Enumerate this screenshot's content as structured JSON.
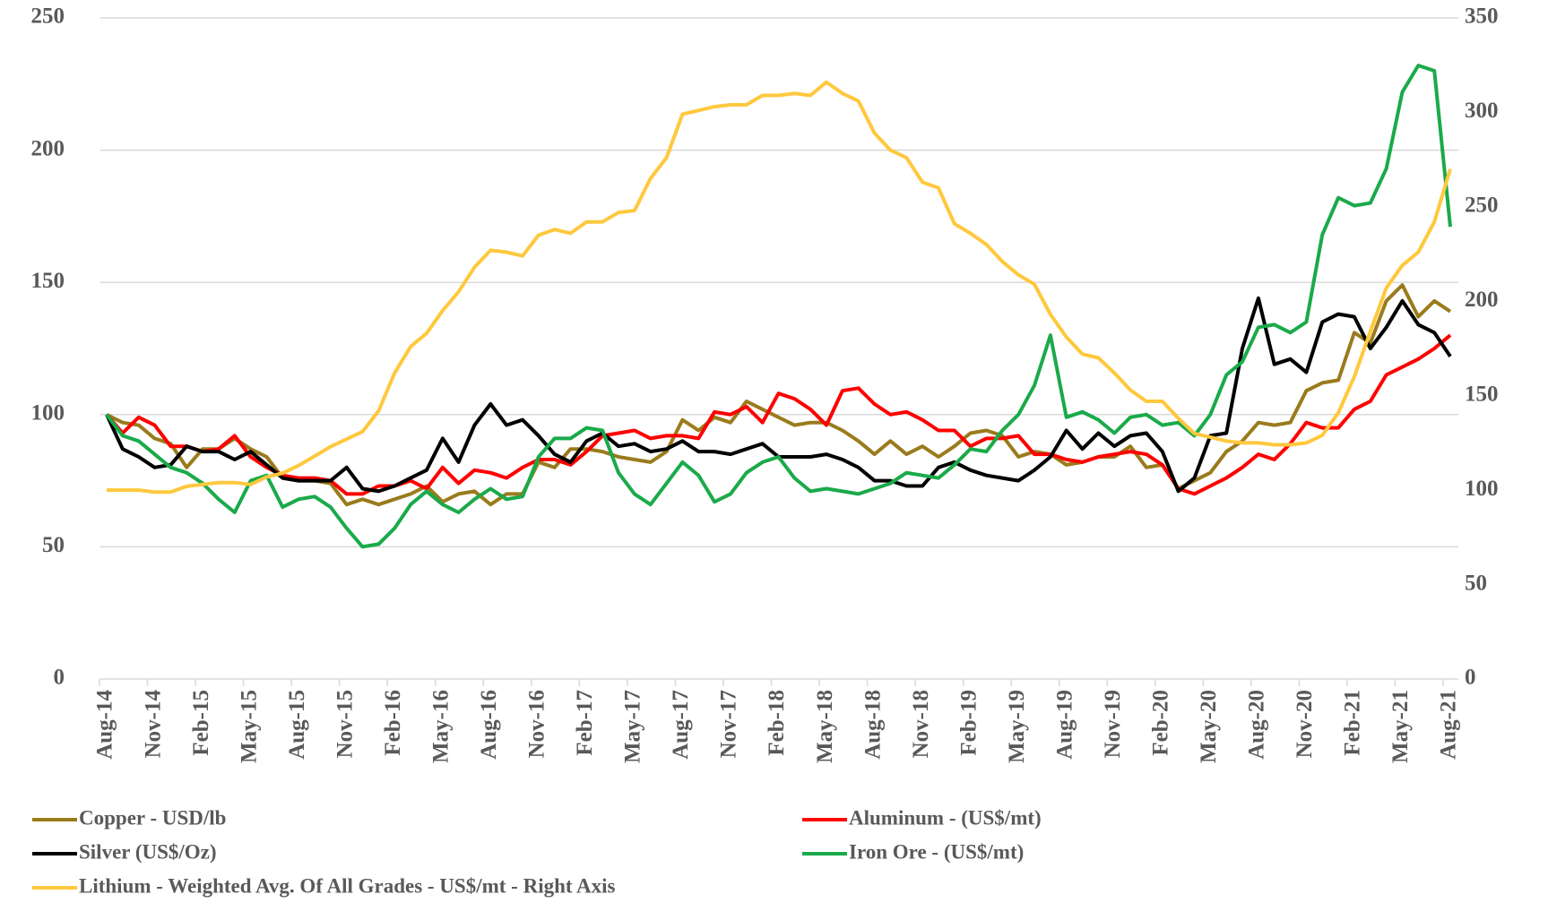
{
  "chart_data": {
    "type": "line",
    "categories": [
      "Aug-14",
      null,
      null,
      "Nov-14",
      null,
      null,
      "Feb-15",
      null,
      null,
      "May-15",
      null,
      null,
      "Aug-15",
      null,
      null,
      "Nov-15",
      null,
      null,
      "Feb-16",
      null,
      null,
      "May-16",
      null,
      null,
      "Aug-16",
      null,
      null,
      "Nov-16",
      null,
      null,
      "Feb-17",
      null,
      null,
      "May-17",
      null,
      null,
      "Aug-17",
      null,
      null,
      "Nov-17",
      null,
      null,
      "Feb-18",
      null,
      null,
      "May-18",
      null,
      null,
      "Aug-18",
      null,
      null,
      "Nov-18",
      null,
      null,
      "Feb-19",
      null,
      null,
      "May-19",
      null,
      null,
      "Aug-19",
      null,
      null,
      "Nov-19",
      null,
      null,
      "Feb-20",
      null,
      null,
      "May-20",
      null,
      null,
      "Aug-20",
      null,
      null,
      "Nov-20",
      null,
      null,
      "Feb-21",
      null,
      null,
      "May-21",
      null,
      null,
      "Aug-21"
    ],
    "series": [
      {
        "name": "Copper - USD/lb",
        "color": "#9a7b1c",
        "values": [
          100,
          97,
          96,
          91,
          89,
          80,
          87,
          87,
          91,
          87,
          84,
          76,
          75,
          75,
          74,
          66,
          68,
          66,
          68,
          70,
          73,
          67,
          70,
          71,
          66,
          70,
          70,
          82,
          80,
          87,
          87,
          86,
          84,
          83,
          82,
          86,
          98,
          94,
          99,
          97,
          105,
          102,
          99,
          96,
          97,
          97,
          94,
          90,
          85,
          90,
          85,
          88,
          84,
          88,
          93,
          94,
          92,
          84,
          86,
          85,
          81,
          82,
          84,
          84,
          88,
          80,
          81,
          72,
          75,
          78,
          86,
          90,
          97,
          96,
          97,
          109,
          112,
          113,
          131,
          127,
          143,
          149,
          137,
          143,
          139
        ]
      },
      {
        "name": "Aluminum - (US$/mt)",
        "color": "#ff0000",
        "values": [
          100,
          93,
          99,
          96,
          88,
          88,
          86,
          87,
          92,
          84,
          80,
          77,
          76,
          76,
          75,
          70,
          70,
          73,
          73,
          75,
          72,
          80,
          74,
          79,
          78,
          76,
          80,
          83,
          83,
          81,
          86,
          92,
          93,
          94,
          91,
          92,
          92,
          91,
          101,
          100,
          103,
          97,
          108,
          106,
          102,
          96,
          109,
          110,
          104,
          100,
          101,
          98,
          94,
          94,
          88,
          91,
          91,
          92,
          85,
          85,
          83,
          82,
          84,
          85,
          86,
          85,
          81,
          72,
          70,
          73,
          76,
          80,
          85,
          83,
          89,
          97,
          95,
          95,
          102,
          105,
          115,
          118,
          121,
          125,
          130
        ]
      },
      {
        "name": "Silver (US$/Oz)",
        "color": "#000000",
        "values": [
          100,
          87,
          84,
          80,
          81,
          88,
          86,
          86,
          83,
          86,
          81,
          76,
          75,
          75,
          75,
          80,
          72,
          71,
          73,
          76,
          79,
          91,
          82,
          96,
          104,
          96,
          98,
          92,
          85,
          82,
          90,
          93,
          88,
          89,
          86,
          87,
          90,
          86,
          86,
          85,
          87,
          89,
          84,
          84,
          84,
          85,
          83,
          80,
          75,
          75,
          73,
          73,
          80,
          82,
          79,
          77,
          76,
          75,
          79,
          84,
          94,
          87,
          93,
          88,
          92,
          93,
          86,
          71,
          76,
          92,
          93,
          125,
          144,
          119,
          121,
          116,
          135,
          138,
          137,
          125,
          133,
          143,
          134,
          131,
          122
        ]
      },
      {
        "name": "Iron Ore - (US$/mt)",
        "color": "#1aaa4a",
        "values": [
          100,
          92,
          90,
          85,
          80,
          78,
          74,
          68,
          63,
          75,
          77,
          65,
          68,
          69,
          65,
          57,
          50,
          51,
          57,
          66,
          71,
          66,
          63,
          68,
          72,
          68,
          69,
          84,
          91,
          91,
          95,
          94,
          78,
          70,
          66,
          74,
          82,
          77,
          67,
          70,
          78,
          82,
          84,
          76,
          71,
          72,
          71,
          70,
          72,
          74,
          78,
          77,
          76,
          81,
          87,
          86,
          94,
          100,
          111,
          130,
          99,
          101,
          98,
          93,
          99,
          100,
          96,
          97,
          92,
          100,
          115,
          120,
          133,
          134,
          131,
          135,
          168,
          182,
          179,
          180,
          193,
          222,
          232,
          230,
          171
        ]
      },
      {
        "name": "Lithium - Weighted Avg. Of All Grades - US$/mt - Right Axis",
        "color": "#ffc83d",
        "axis": "y2",
        "values": [
          100,
          100,
          100,
          99,
          99,
          102,
          103,
          104,
          104,
          103,
          107,
          109,
          113,
          118,
          123,
          127,
          131,
          142,
          162,
          176,
          183,
          195,
          205,
          218,
          227,
          226,
          224,
          235,
          238,
          236,
          242,
          242,
          247,
          248,
          265,
          276,
          299,
          301,
          303,
          304,
          304,
          309,
          309,
          310,
          309,
          316,
          310,
          306,
          289,
          280,
          276,
          263,
          260,
          241,
          236,
          230,
          221,
          214,
          209,
          193,
          181,
          172,
          170,
          162,
          153,
          147,
          147,
          138,
          130,
          128,
          126,
          125,
          125,
          124,
          124,
          125,
          129,
          141,
          160,
          184,
          207,
          219,
          226,
          242,
          270
        ]
      }
    ],
    "ylim": [
      0,
      250
    ],
    "yticks": [
      0,
      50,
      100,
      150,
      200,
      250
    ],
    "y2lim": [
      0,
      350
    ],
    "y2ticks": [
      0,
      50,
      100,
      150,
      200,
      250,
      300,
      350
    ],
    "grid": true,
    "legend": "bottom"
  }
}
